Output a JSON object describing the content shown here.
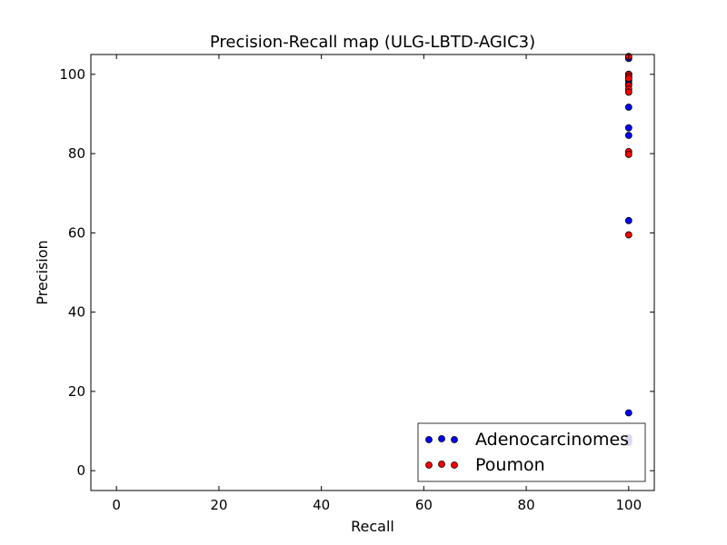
{
  "chart_data": {
    "type": "scatter",
    "title": "Precision-Recall map (ULG-LBTD-AGIC3)",
    "xlabel": "Recall",
    "ylabel": "Precision",
    "xlim": [
      -5,
      105
    ],
    "ylim": [
      -5,
      105
    ],
    "xticks": [
      0,
      20,
      40,
      60,
      80,
      100
    ],
    "yticks": [
      0,
      20,
      40,
      60,
      80,
      100
    ],
    "grid": false,
    "legend_position": "bottom-right",
    "series": [
      {
        "name": "Adenocarcinomes",
        "color": "#0000ff",
        "points": [
          {
            "x": 100,
            "y": 104
          },
          {
            "x": 100,
            "y": 100
          },
          {
            "x": 100,
            "y": 99.2
          },
          {
            "x": 100,
            "y": 98.4
          },
          {
            "x": 100,
            "y": 97.6
          },
          {
            "x": 100,
            "y": 91.7
          },
          {
            "x": 100,
            "y": 86.5
          },
          {
            "x": 100,
            "y": 84.6
          },
          {
            "x": 100,
            "y": 63.1
          },
          {
            "x": 100,
            "y": 14.6
          },
          {
            "x": 100,
            "y": 8.3
          },
          {
            "x": 100,
            "y": 7.7
          },
          {
            "x": 100,
            "y": 7.1
          }
        ]
      },
      {
        "name": "Poumon",
        "color": "#ff0000",
        "points": [
          {
            "x": 100,
            "y": 104.5
          },
          {
            "x": 100,
            "y": 100
          },
          {
            "x": 100,
            "y": 99.5
          },
          {
            "x": 100,
            "y": 99
          },
          {
            "x": 100,
            "y": 97.2
          },
          {
            "x": 100,
            "y": 96.3
          },
          {
            "x": 100,
            "y": 95.5
          },
          {
            "x": 100,
            "y": 80.5
          },
          {
            "x": 100,
            "y": 79.8
          },
          {
            "x": 100,
            "y": 59.5
          }
        ]
      }
    ]
  }
}
